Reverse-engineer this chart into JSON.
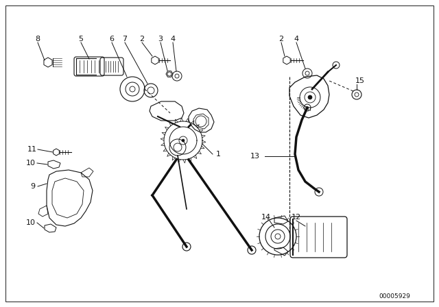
{
  "background_color": "#ffffff",
  "diagram_color": "#111111",
  "part_number_code": "00005929",
  "fig_width": 6.4,
  "fig_height": 4.48,
  "dpi": 100
}
